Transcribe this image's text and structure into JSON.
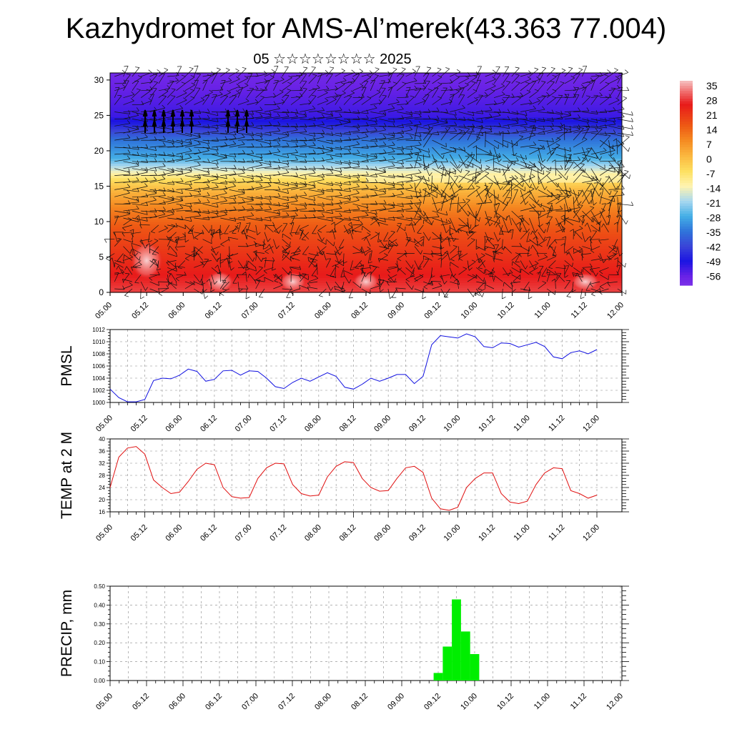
{
  "title": "Kazhydromet for AMS-Al’merek(43.363 77.004)",
  "subtitle": "05 ☆☆☆☆☆☆☆☆ 2025",
  "time_labels": [
    "05.00",
    "05.12",
    "06.00",
    "06.12",
    "07.00",
    "07.12",
    "08.00",
    "08.12",
    "09.00",
    "09.12",
    "10.00",
    "10.12",
    "11.00",
    "11.12",
    "12.00"
  ],
  "chart_data": [
    {
      "type": "heatmap",
      "name": "cross-section",
      "y_ticks": [
        "0",
        "5",
        "10",
        "15",
        "20",
        "25",
        "30"
      ],
      "ylim": [
        0,
        31
      ],
      "colorbar_labels": [
        "35",
        "28",
        "21",
        "14",
        "7",
        "0",
        "-7",
        "-14",
        "-21",
        "-28",
        "-35",
        "-42",
        "-49",
        "-56"
      ],
      "colorbar_range": [
        35,
        -60
      ],
      "color_stops": [
        {
          "v": 35,
          "c": "#f6c2c2"
        },
        {
          "v": 30,
          "c": "#f07070"
        },
        {
          "v": 24,
          "c": "#e81a1a"
        },
        {
          "v": 14,
          "c": "#ee5a14"
        },
        {
          "v": 7,
          "c": "#f58c22"
        },
        {
          "v": 0,
          "c": "#fbb840"
        },
        {
          "v": -7,
          "c": "#fde060"
        },
        {
          "v": -14,
          "c": "#fff4b0"
        },
        {
          "v": -21,
          "c": "#a8d8f0"
        },
        {
          "v": -28,
          "c": "#44aee6"
        },
        {
          "v": -35,
          "c": "#2f74da"
        },
        {
          "v": -42,
          "c": "#3a44d8"
        },
        {
          "v": -49,
          "c": "#1b14e2"
        },
        {
          "v": -56,
          "c": "#6a22e6"
        },
        {
          "v": -60,
          "c": "#7a30e8"
        }
      ]
    },
    {
      "type": "line",
      "name": "pmsl",
      "ylabel": "PMSL",
      "y_ticks": [
        "1000",
        "1002",
        "1004",
        "1006",
        "1008",
        "1010",
        "1012"
      ],
      "ylim": [
        1000,
        1012
      ],
      "color": "#1010e0",
      "x": [
        0,
        3,
        6,
        9,
        12,
        15,
        18,
        21,
        24,
        27,
        30,
        33,
        36,
        39,
        42,
        45,
        48,
        51,
        54,
        57,
        60,
        63,
        66,
        69,
        72,
        75,
        78,
        81,
        84,
        87,
        90,
        93,
        96,
        99,
        102,
        105,
        108,
        111,
        114,
        117,
        120,
        123,
        126,
        129,
        132,
        135,
        138,
        141,
        144,
        147,
        150,
        153,
        156,
        159,
        162,
        165,
        168
      ],
      "values": [
        1002.2,
        1000.8,
        1000.1,
        1000.1,
        1000.5,
        1003.6,
        1004.0,
        1003.9,
        1004.5,
        1005.5,
        1005.1,
        1003.5,
        1003.8,
        1005.2,
        1005.3,
        1004.5,
        1005.2,
        1005.1,
        1004.0,
        1002.6,
        1002.3,
        1003.3,
        1004.0,
        1003.5,
        1004.2,
        1004.9,
        1004.3,
        1002.5,
        1002.2,
        1003.0,
        1004.0,
        1003.5,
        1004.0,
        1004.6,
        1004.6,
        1003.1,
        1004.3,
        1009.5,
        1011.0,
        1010.8,
        1010.6,
        1011.3,
        1010.8,
        1009.2,
        1009.0,
        1009.8,
        1009.7,
        1009.1,
        1009.5,
        1009.9,
        1009.2,
        1007.5,
        1007.2,
        1008.2,
        1008.5,
        1008.0,
        1008.7
      ]
    },
    {
      "type": "line",
      "name": "temp2m",
      "ylabel": "TEMP at 2 M",
      "y_ticks": [
        "16",
        "20",
        "24",
        "28",
        "32",
        "36",
        "40"
      ],
      "ylim": [
        16,
        40
      ],
      "color": "#e01010",
      "x": [
        0,
        3,
        6,
        9,
        12,
        15,
        18,
        21,
        24,
        27,
        30,
        33,
        36,
        39,
        42,
        45,
        48,
        51,
        54,
        57,
        60,
        63,
        66,
        69,
        72,
        75,
        78,
        81,
        84,
        87,
        90,
        93,
        96,
        99,
        102,
        105,
        108,
        111,
        114,
        117,
        120,
        123,
        126,
        129,
        132,
        135,
        138,
        141,
        144,
        147,
        150,
        153,
        156,
        159,
        162,
        165,
        168
      ],
      "values": [
        24.0,
        34.0,
        37.0,
        37.5,
        35.0,
        26.5,
        24.0,
        22.0,
        22.5,
        26.0,
        30.0,
        32.0,
        31.5,
        24.0,
        21.0,
        20.5,
        20.7,
        27.0,
        30.5,
        32.0,
        31.8,
        25.0,
        22.0,
        21.2,
        21.5,
        27.5,
        31.0,
        32.5,
        32.2,
        27.0,
        24.0,
        22.8,
        23.0,
        27.0,
        30.5,
        31.0,
        29.0,
        20.5,
        17.0,
        16.5,
        17.5,
        24.0,
        27.0,
        28.8,
        28.8,
        22.0,
        19.2,
        18.7,
        19.5,
        25.0,
        28.8,
        30.5,
        30.2,
        23.0,
        22.0,
        20.5,
        21.5
      ]
    },
    {
      "type": "bar",
      "name": "precip",
      "ylabel": "PRECIP, mm",
      "y_ticks": [
        "0.00",
        "0.10",
        "0.20",
        "0.30",
        "0.40",
        "0.50"
      ],
      "ylim": [
        0,
        0.5
      ],
      "color": "#00ee00",
      "x": [
        108,
        111,
        114,
        117,
        120,
        123
      ],
      "values": [
        0.04,
        0.18,
        0.43,
        0.26,
        0.14,
        0.0
      ]
    }
  ]
}
